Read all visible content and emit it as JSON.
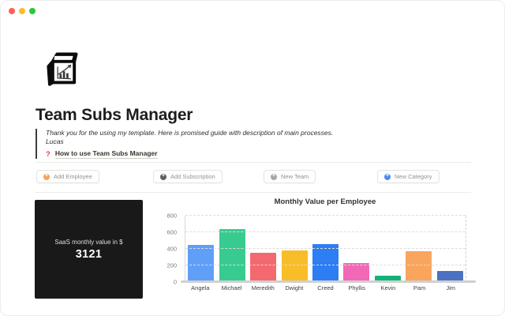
{
  "window": {
    "traffic_lights": [
      "#ff5f57",
      "#febc2e",
      "#28c840"
    ]
  },
  "page": {
    "icon": "cube-bar-chart",
    "title": "Team Subs Manager",
    "quote": {
      "line1": "Thank you for the using my template. Here is promised guide with description of main processes.",
      "line2": "Lucas"
    },
    "guide_link": {
      "icon": "?",
      "icon_color": "#e03e3e",
      "label": "How to use Team Subs Manager"
    }
  },
  "toolbar": {
    "buttons": [
      {
        "label": "Add Employee",
        "icon": "plus-circle",
        "icon_color": "#f5a25a"
      },
      {
        "label": "Add Subscription",
        "icon": "plus-circle",
        "icon_color": "#5f5f5d"
      },
      {
        "label": "New Team",
        "icon": "plus-circle",
        "icon_color": "#a6a6a4"
      },
      {
        "label": "New Category",
        "icon": "plus-circle",
        "icon_color": "#4a8af4"
      }
    ]
  },
  "stat_card": {
    "label": "SaaS monthly value in $",
    "value": "3121",
    "bg_color": "#191919"
  },
  "chart_data": {
    "type": "bar",
    "title": "Monthly Value per Employee",
    "categories": [
      "Angela",
      "Michael",
      "Meredith",
      "Dwight",
      "Creed",
      "Phyllis",
      "Kevin",
      "Pam",
      "Jim"
    ],
    "values": [
      450,
      640,
      350,
      380,
      460,
      230,
      80,
      370,
      135
    ],
    "colors": [
      "#5f9ff7",
      "#38cb90",
      "#f4686f",
      "#f9bd28",
      "#2d7df5",
      "#f168b6",
      "#12b378",
      "#f9a55e",
      "#4b72c2"
    ],
    "xlabel": "",
    "ylabel": "",
    "ylim": [
      0,
      800
    ],
    "yticks": [
      0,
      200,
      400,
      600,
      800
    ],
    "grid": "horizontal-dashed",
    "legend": "none"
  }
}
